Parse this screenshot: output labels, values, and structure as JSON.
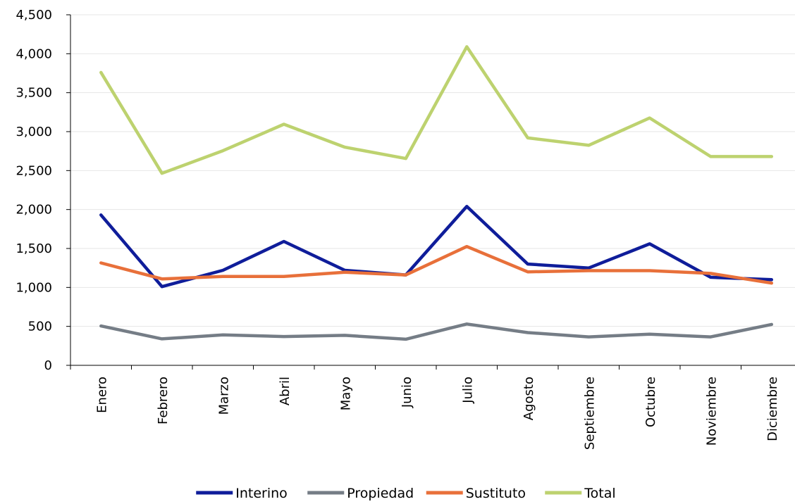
{
  "chart_data": {
    "type": "line",
    "title": "",
    "xlabel": "",
    "ylabel": "",
    "categories": [
      "Enero",
      "Febrero",
      "Marzo",
      "Abril",
      "Mayo",
      "Junio",
      "Julio",
      "Agosto",
      "Septiembre",
      "Octubre",
      "Noviembre",
      "Diciembre"
    ],
    "ylim": [
      0,
      4500
    ],
    "yticks": [
      0,
      500,
      1000,
      1500,
      2000,
      2500,
      3000,
      3500,
      4000,
      4500
    ],
    "ytick_labels": [
      "0",
      "500",
      "1,000",
      "1,500",
      "2,000",
      "2,500",
      "3,000",
      "3,500",
      "4,000",
      "4,500"
    ],
    "grid": true,
    "legend_position": "bottom",
    "series": [
      {
        "name": "Interino",
        "color": "#0f1d9a",
        "values": [
          1930,
          1010,
          1220,
          1590,
          1220,
          1160,
          2040,
          1300,
          1250,
          1560,
          1130,
          1100
        ]
      },
      {
        "name": "Propiedad",
        "color": "#757d86",
        "values": [
          505,
          340,
          390,
          370,
          385,
          335,
          530,
          420,
          365,
          400,
          365,
          525
        ]
      },
      {
        "name": "Sustituto",
        "color": "#e8703a",
        "values": [
          1315,
          1110,
          1140,
          1140,
          1195,
          1160,
          1525,
          1200,
          1215,
          1215,
          1180,
          1055
        ]
      },
      {
        "name": "Total",
        "color": "#bdd26f",
        "values": [
          3760,
          2465,
          2755,
          3095,
          2800,
          2655,
          4090,
          2920,
          2825,
          3175,
          2680,
          2680
        ]
      }
    ]
  }
}
